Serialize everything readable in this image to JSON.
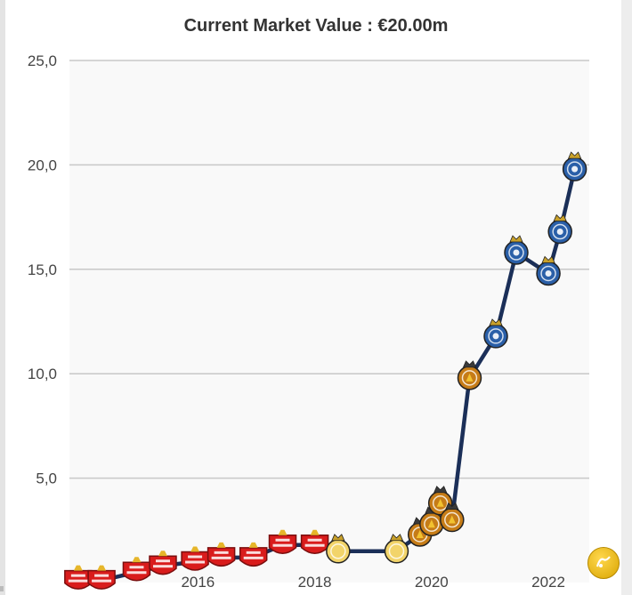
{
  "title": "Current Market Value : €20.00m",
  "chart_data": {
    "type": "line",
    "ylim": [
      0,
      25
    ],
    "xlim": [
      2013.8,
      2022.7
    ],
    "y_ticks": [
      {
        "value": 5,
        "label": "5,0"
      },
      {
        "value": 10,
        "label": "10,0"
      },
      {
        "value": 15,
        "label": "15,0"
      },
      {
        "value": 20,
        "label": "20,0"
      },
      {
        "value": 25,
        "label": "25,0"
      }
    ],
    "x_ticks": [
      {
        "value": 2016,
        "label": "2016"
      },
      {
        "value": 2018,
        "label": "2018"
      },
      {
        "value": 2020,
        "label": "2020"
      },
      {
        "value": 2022,
        "label": "2022"
      }
    ],
    "grid": true,
    "line_color": "#1b2f58",
    "series": [
      {
        "points": [
          {
            "x": 2013.95,
            "y": 0.1,
            "club": "red"
          },
          {
            "x": 2014.35,
            "y": 0.1,
            "club": "red"
          },
          {
            "x": 2014.95,
            "y": 0.5,
            "club": "red"
          },
          {
            "x": 2015.4,
            "y": 0.8,
            "club": "red"
          },
          {
            "x": 2015.95,
            "y": 1.0,
            "club": "red"
          },
          {
            "x": 2016.4,
            "y": 1.2,
            "club": "red"
          },
          {
            "x": 2016.95,
            "y": 1.2,
            "club": "red"
          },
          {
            "x": 2017.45,
            "y": 1.8,
            "club": "red"
          },
          {
            "x": 2018.0,
            "y": 1.8,
            "club": "red"
          },
          {
            "x": 2018.4,
            "y": 1.5,
            "club": "light"
          },
          {
            "x": 2019.4,
            "y": 1.5,
            "club": "light"
          },
          {
            "x": 2019.8,
            "y": 2.3,
            "club": "orange"
          },
          {
            "x": 2020.0,
            "y": 2.8,
            "club": "orange"
          },
          {
            "x": 2020.15,
            "y": 3.8,
            "club": "orange"
          },
          {
            "x": 2020.35,
            "y": 3.0,
            "club": "orange"
          },
          {
            "x": 2020.65,
            "y": 9.8,
            "club": "orange"
          },
          {
            "x": 2021.1,
            "y": 11.8,
            "club": "blue"
          },
          {
            "x": 2021.45,
            "y": 15.8,
            "club": "blue"
          },
          {
            "x": 2022.0,
            "y": 14.8,
            "club": "blue"
          },
          {
            "x": 2022.2,
            "y": 16.8,
            "club": "blue"
          },
          {
            "x": 2022.45,
            "y": 19.8,
            "club": "blue"
          }
        ]
      }
    ],
    "club_colors": {
      "red": "#d91c1c",
      "light": "#f2d46a",
      "orange": "#c67c17",
      "blue": "#2a5fa8"
    }
  },
  "icons": {
    "corner_badge": "site-logo-icon"
  }
}
